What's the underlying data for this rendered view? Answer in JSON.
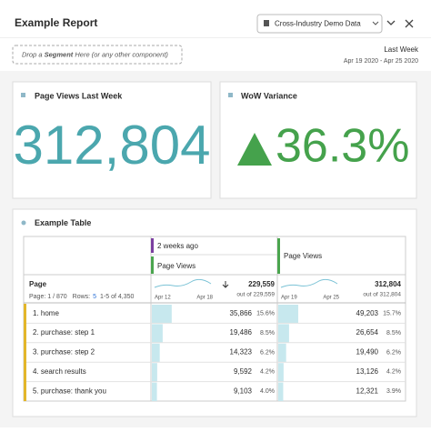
{
  "header": {
    "title": "Example Report",
    "data_source": "Cross-Industry Demo Data",
    "date_preset": "Last Week",
    "date_range": "Apr 19 2020 - Apr 25 2020"
  },
  "drop_zone": {
    "parts": [
      "Drop a ",
      "Segment",
      " Here (or any other component)"
    ]
  },
  "panels": [
    {
      "title": "Page Views Last Week",
      "value": "312,804"
    },
    {
      "title": "WoW Variance",
      "value": "36.3%"
    }
  ],
  "table": {
    "title": "Example Table",
    "dimension": "Page",
    "page_info": "Page: 1 / 870",
    "rows_label": "Rows:",
    "rows_count": "5",
    "row_range": "1-5 of 4,350",
    "columns": [
      {
        "segment": "2 weeks ago",
        "metric": "Page Views",
        "total": "229,559",
        "total_of": "out of 229,559",
        "date_start": "Apr 12",
        "date_end": "Apr 18",
        "sorted": true
      },
      {
        "metric": "Page Views",
        "total": "312,804",
        "total_of": "out of 312,804",
        "date_start": "Apr 19",
        "date_end": "Apr 25"
      }
    ],
    "rows": [
      {
        "label": "1. home",
        "cells": [
          [
            "35,866",
            "15.6%"
          ],
          [
            "49,203",
            "15.7%"
          ]
        ]
      },
      {
        "label": "2. purchase: step 1",
        "cells": [
          [
            "19,486",
            "8.5%"
          ],
          [
            "26,654",
            "8.5%"
          ]
        ]
      },
      {
        "label": "3. purchase: step 2",
        "cells": [
          [
            "14,323",
            "6.2%"
          ],
          [
            "19,490",
            "6.2%"
          ]
        ]
      },
      {
        "label": "4. search results",
        "cells": [
          [
            "9,592",
            "4.2%"
          ],
          [
            "13,126",
            "4.2%"
          ]
        ]
      },
      {
        "label": "5. purchase: thank you",
        "cells": [
          [
            "9,103",
            "4.0%"
          ],
          [
            "12,321",
            "3.9%"
          ]
        ]
      }
    ]
  }
}
